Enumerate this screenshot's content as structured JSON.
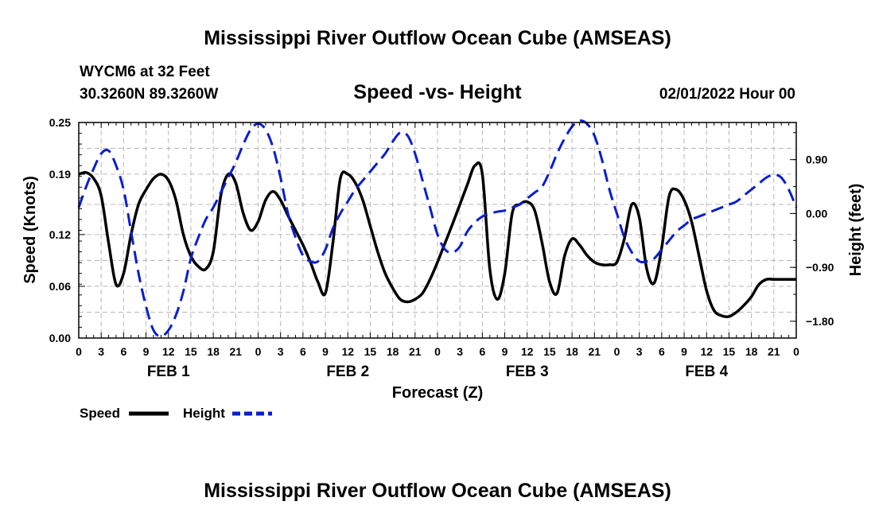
{
  "header": {
    "title": "Mississippi River Outflow Ocean Cube (AMSEAS)",
    "station": "WYCM6 at 32 Feet",
    "location": "30.3260N  89.3260W",
    "datetime": "02/01/2022 Hour 00",
    "footer_title": "Mississippi River Outflow Ocean Cube (AMSEAS)"
  },
  "chart_data": {
    "type": "line",
    "title": "Speed -vs- Height",
    "xlabel": "Forecast (Z)",
    "ylabel": "Speed (Knots)",
    "y2label": "Height (feet)",
    "x_range": [
      0,
      96
    ],
    "ylim": [
      0,
      0.25
    ],
    "y2lim": [
      -2.08,
      1.52
    ],
    "grid": true,
    "x_tick_labels": [
      "0",
      "3",
      "6",
      "9",
      "12",
      "15",
      "18",
      "21",
      "0",
      "3",
      "6",
      "9",
      "12",
      "15",
      "18",
      "21",
      "0",
      "3",
      "6",
      "9",
      "12",
      "15",
      "18",
      "21",
      "0",
      "3",
      "6",
      "9",
      "12",
      "15",
      "18",
      "21",
      "0"
    ],
    "day_labels": [
      {
        "label": "FEB 1",
        "hour": 12
      },
      {
        "label": "FEB 2",
        "hour": 36
      },
      {
        "label": "FEB 3",
        "hour": 60
      },
      {
        "label": "FEB 4",
        "hour": 84
      }
    ],
    "y_ticks": [
      0.0,
      0.06,
      0.12,
      0.19,
      0.25
    ],
    "y_tick_labels": [
      "0.00",
      "0.06",
      "0.12",
      "0.19",
      "0.25"
    ],
    "y2_ticks": [
      -1.8,
      -0.9,
      0.0,
      0.9
    ],
    "y2_tick_labels": [
      "−1.80",
      "−0.90",
      "0.00",
      "0.90"
    ],
    "series": [
      {
        "name": "Speed",
        "axis": "left",
        "color": "#000000",
        "dash": "solid",
        "x": [
          0,
          1,
          2,
          3,
          4,
          5,
          6,
          7,
          8,
          9,
          10,
          11,
          12,
          13,
          14,
          15,
          16,
          17,
          18,
          19,
          20,
          21,
          22,
          23,
          24,
          25,
          26,
          27,
          28,
          29,
          30,
          31,
          32,
          33,
          34,
          35,
          36,
          37,
          38,
          39,
          40,
          41,
          42,
          43,
          44,
          45,
          46,
          47,
          48,
          49,
          50,
          51,
          52,
          53,
          54,
          55,
          56,
          57,
          58,
          59,
          60,
          61,
          62,
          63,
          64,
          65,
          66,
          67,
          68,
          69,
          70,
          71,
          72,
          73,
          74,
          75,
          76,
          77,
          78,
          79,
          80,
          81,
          82,
          83,
          84,
          85,
          86,
          87,
          88,
          89,
          90,
          91,
          92,
          93,
          94,
          95,
          96
        ],
        "values": [
          0.19,
          0.192,
          0.185,
          0.165,
          0.11,
          0.062,
          0.075,
          0.12,
          0.155,
          0.172,
          0.185,
          0.19,
          0.183,
          0.16,
          0.12,
          0.095,
          0.083,
          0.08,
          0.1,
          0.165,
          0.19,
          0.18,
          0.145,
          0.125,
          0.135,
          0.16,
          0.17,
          0.16,
          0.142,
          0.125,
          0.108,
          0.088,
          0.065,
          0.052,
          0.11,
          0.185,
          0.19,
          0.18,
          0.16,
          0.13,
          0.1,
          0.075,
          0.058,
          0.045,
          0.042,
          0.045,
          0.052,
          0.068,
          0.088,
          0.11,
          0.132,
          0.155,
          0.178,
          0.2,
          0.19,
          0.08,
          0.045,
          0.075,
          0.145,
          0.155,
          0.158,
          0.148,
          0.11,
          0.065,
          0.052,
          0.095,
          0.115,
          0.108,
          0.096,
          0.088,
          0.085,
          0.085,
          0.088,
          0.115,
          0.155,
          0.14,
          0.08,
          0.064,
          0.105,
          0.165,
          0.172,
          0.16,
          0.135,
          0.095,
          0.055,
          0.032,
          0.026,
          0.025,
          0.03,
          0.038,
          0.048,
          0.062,
          0.068,
          0.068,
          0.068,
          0.068,
          0.068
        ]
      },
      {
        "name": "Height",
        "axis": "right",
        "color": "#0a1ecf",
        "dash": "dashed",
        "x": [
          0,
          1,
          2,
          3,
          4,
          5,
          6,
          7,
          8,
          9,
          10,
          11,
          12,
          13,
          14,
          15,
          16,
          17,
          18,
          19,
          20,
          21,
          22,
          23,
          24,
          25,
          26,
          27,
          28,
          29,
          30,
          31,
          32,
          33,
          34,
          35,
          36,
          37,
          38,
          39,
          40,
          41,
          42,
          43,
          44,
          45,
          46,
          47,
          48,
          49,
          50,
          51,
          52,
          53,
          54,
          55,
          56,
          57,
          58,
          59,
          60,
          61,
          62,
          63,
          64,
          65,
          66,
          67,
          68,
          69,
          70,
          71,
          72,
          73,
          74,
          75,
          76,
          77,
          78,
          79,
          80,
          81,
          82,
          83,
          84,
          85,
          86,
          87,
          88,
          89,
          90,
          91,
          92,
          93,
          94,
          95,
          96
        ],
        "values": [
          0.1,
          0.45,
          0.75,
          1.0,
          1.05,
          0.8,
          0.4,
          -0.3,
          -1.0,
          -1.55,
          -1.95,
          -2.05,
          -1.95,
          -1.7,
          -1.3,
          -0.75,
          -0.4,
          -0.1,
          0.1,
          0.35,
          0.6,
          0.85,
          1.15,
          1.4,
          1.5,
          1.4,
          1.1,
          0.6,
          0.0,
          -0.4,
          -0.7,
          -0.8,
          -0.8,
          -0.6,
          -0.25,
          0.0,
          0.2,
          0.4,
          0.55,
          0.7,
          0.85,
          1.0,
          1.2,
          1.35,
          1.3,
          1.0,
          0.55,
          0.1,
          -0.35,
          -0.6,
          -0.65,
          -0.55,
          -0.3,
          -0.15,
          -0.05,
          0.0,
          0.03,
          0.05,
          0.1,
          0.15,
          0.25,
          0.35,
          0.45,
          0.7,
          1.0,
          1.25,
          1.45,
          1.55,
          1.5,
          1.3,
          0.9,
          0.4,
          0.0,
          -0.4,
          -0.65,
          -0.8,
          -0.8,
          -0.75,
          -0.6,
          -0.45,
          -0.3,
          -0.2,
          -0.1,
          -0.05,
          0.0,
          0.05,
          0.1,
          0.15,
          0.2,
          0.3,
          0.4,
          0.5,
          0.6,
          0.65,
          0.6,
          0.4,
          0.1
        ]
      }
    ]
  },
  "legend": {
    "speed_label": "Speed",
    "height_label": "Height"
  }
}
